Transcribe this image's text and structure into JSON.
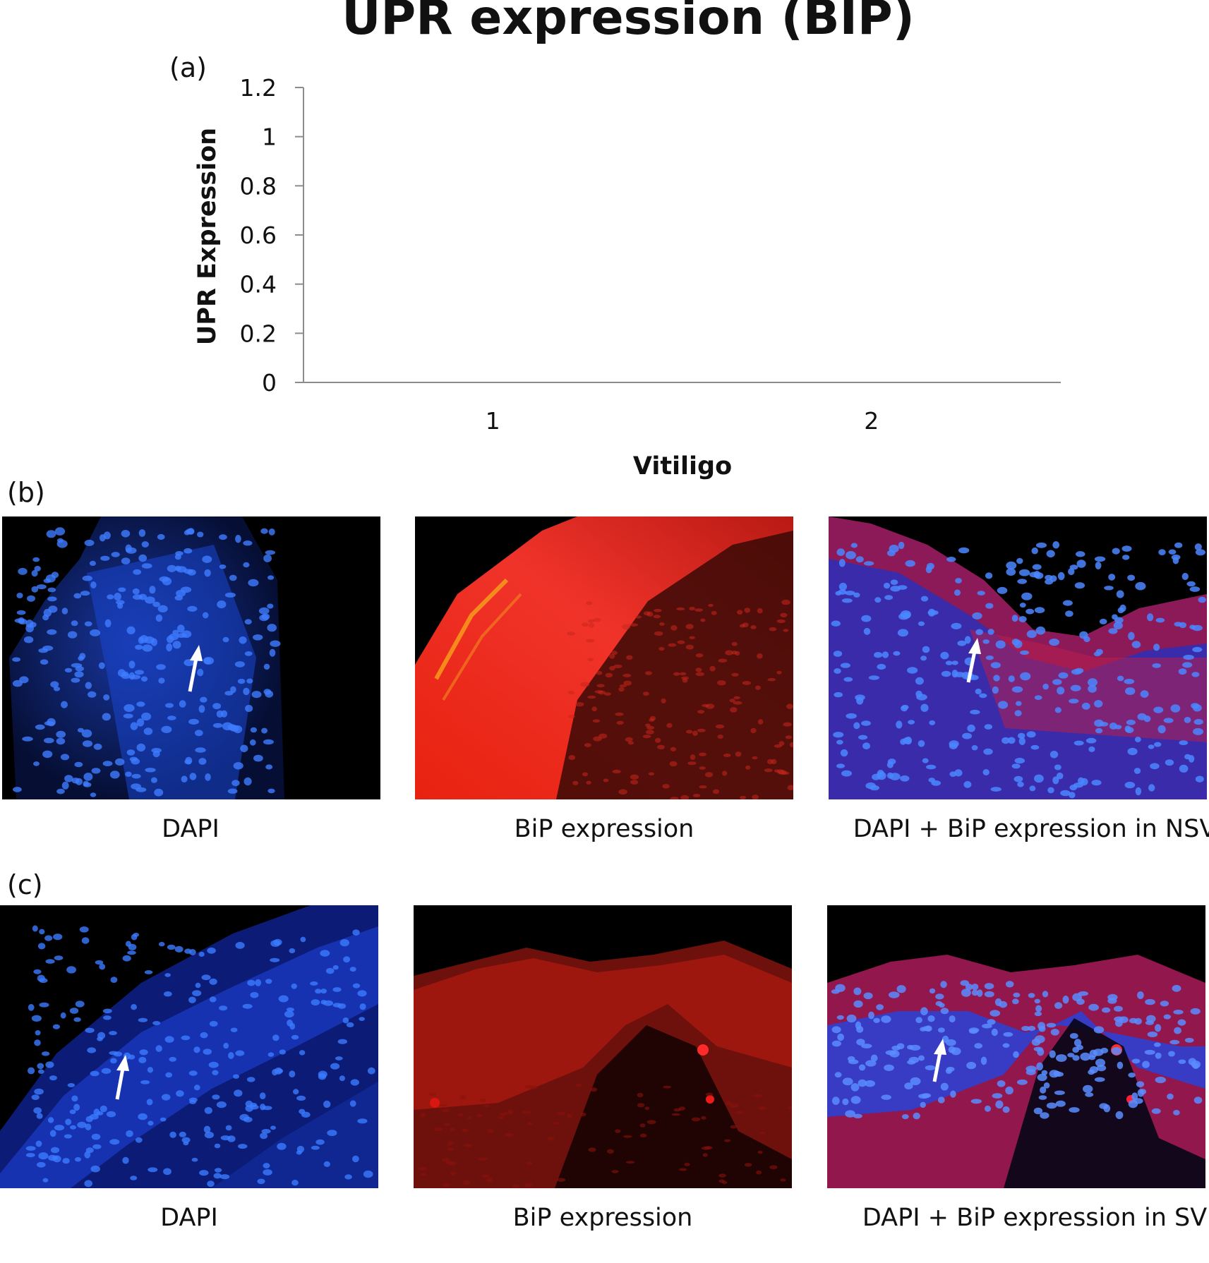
{
  "figure": {
    "title": "UPR expression (BIP)",
    "panel_a_label": "(a)",
    "panel_b_label": "(b)",
    "panel_c_label": "(c)"
  },
  "chart_data": {
    "type": "bar",
    "title": "UPR expression (BIP)",
    "xlabel": "Vitiligo",
    "ylabel": "UPR Expression",
    "categories": [
      "1",
      "2"
    ],
    "yticks": [
      "0",
      "0.2",
      "0.4",
      "0.6",
      "0.8",
      "1",
      "1.2"
    ],
    "ylim": [
      0,
      1.2
    ],
    "series": [],
    "grid": false,
    "legend": "none"
  },
  "panels": {
    "b": [
      {
        "caption": "DAPI",
        "stain": "blue",
        "arrow": true
      },
      {
        "caption": "BiP expression",
        "stain": "red",
        "arrow": false
      },
      {
        "caption": "DAPI + BiP expression in NSV",
        "stain": "merge",
        "arrow": true
      }
    ],
    "c": [
      {
        "caption": "DAPI",
        "stain": "blue",
        "arrow": true
      },
      {
        "caption": "BiP expression",
        "stain": "red",
        "arrow": false
      },
      {
        "caption": "DAPI + BiP expression in SV",
        "stain": "merge",
        "arrow": true
      }
    ]
  },
  "colors": {
    "dapi": "#1f4fd6",
    "bip": "#d81e12",
    "background": "#000000",
    "arrow": "#ffffff"
  }
}
